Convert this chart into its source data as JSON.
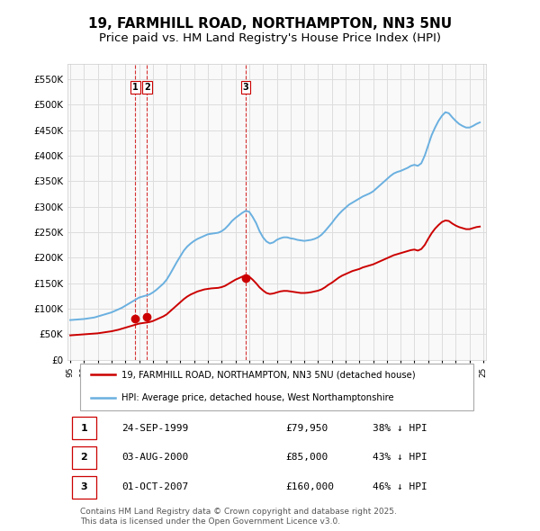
{
  "title": "19, FARMHILL ROAD, NORTHAMPTON, NN3 5NU",
  "subtitle": "Price paid vs. HM Land Registry's House Price Index (HPI)",
  "title_fontsize": 11,
  "subtitle_fontsize": 9.5,
  "background_color": "#ffffff",
  "plot_bg_color": "#f9f9f9",
  "grid_color": "#dddddd",
  "red_line_color": "#cc0000",
  "blue_line_color": "#6ab0e0",
  "sale_marker_color": "#cc0000",
  "vline_color": "#cc0000",
  "legend_label_red": "19, FARMHILL ROAD, NORTHAMPTON, NN3 5NU (detached house)",
  "legend_label_blue": "HPI: Average price, detached house, West Northamptonshire",
  "footer_text": "Contains HM Land Registry data © Crown copyright and database right 2025.\nThis data is licensed under the Open Government Licence v3.0.",
  "ylim": [
    0,
    580000
  ],
  "yticks": [
    0,
    50000,
    100000,
    150000,
    200000,
    250000,
    300000,
    350000,
    400000,
    450000,
    500000,
    550000
  ],
  "ytick_labels": [
    "£0",
    "£50K",
    "£100K",
    "£150K",
    "£200K",
    "£250K",
    "£300K",
    "£350K",
    "£400K",
    "£450K",
    "£500K",
    "£550K"
  ],
  "sales": [
    {
      "date": "24-SEP-1999",
      "price": 79950,
      "label": "1",
      "pct": "38%",
      "x_year": 1999.73
    },
    {
      "date": "03-AUG-2000",
      "price": 85000,
      "label": "2",
      "pct": "43%",
      "x_year": 2000.58
    },
    {
      "date": "01-OCT-2007",
      "price": 160000,
      "label": "3",
      "pct": "46%",
      "x_year": 2007.75
    }
  ],
  "hpi_x": [
    1995.0,
    1995.25,
    1995.5,
    1995.75,
    1996.0,
    1996.25,
    1996.5,
    1996.75,
    1997.0,
    1997.25,
    1997.5,
    1997.75,
    1998.0,
    1998.25,
    1998.5,
    1998.75,
    1999.0,
    1999.25,
    1999.5,
    1999.75,
    2000.0,
    2000.25,
    2000.5,
    2000.75,
    2001.0,
    2001.25,
    2001.5,
    2001.75,
    2002.0,
    2002.25,
    2002.5,
    2002.75,
    2003.0,
    2003.25,
    2003.5,
    2003.75,
    2004.0,
    2004.25,
    2004.5,
    2004.75,
    2005.0,
    2005.25,
    2005.5,
    2005.75,
    2006.0,
    2006.25,
    2006.5,
    2006.75,
    2007.0,
    2007.25,
    2007.5,
    2007.75,
    2008.0,
    2008.25,
    2008.5,
    2008.75,
    2009.0,
    2009.25,
    2009.5,
    2009.75,
    2010.0,
    2010.25,
    2010.5,
    2010.75,
    2011.0,
    2011.25,
    2011.5,
    2011.75,
    2012.0,
    2012.25,
    2012.5,
    2012.75,
    2013.0,
    2013.25,
    2013.5,
    2013.75,
    2014.0,
    2014.25,
    2014.5,
    2014.75,
    2015.0,
    2015.25,
    2015.5,
    2015.75,
    2016.0,
    2016.25,
    2016.5,
    2016.75,
    2017.0,
    2017.25,
    2017.5,
    2017.75,
    2018.0,
    2018.25,
    2018.5,
    2018.75,
    2019.0,
    2019.25,
    2019.5,
    2019.75,
    2020.0,
    2020.25,
    2020.5,
    2020.75,
    2021.0,
    2021.25,
    2021.5,
    2021.75,
    2022.0,
    2022.25,
    2022.5,
    2022.75,
    2023.0,
    2023.25,
    2023.5,
    2023.75,
    2024.0,
    2024.25,
    2024.5,
    2024.75
  ],
  "hpi_y": [
    78000,
    78500,
    79000,
    79500,
    80000,
    81000,
    82000,
    83000,
    85000,
    87000,
    89000,
    91000,
    93000,
    96000,
    99000,
    102000,
    106000,
    110000,
    114000,
    118000,
    122000,
    124000,
    126000,
    128000,
    132000,
    137000,
    143000,
    149000,
    157000,
    168000,
    180000,
    192000,
    203000,
    214000,
    222000,
    228000,
    233000,
    237000,
    240000,
    243000,
    246000,
    247000,
    248000,
    249000,
    252000,
    257000,
    264000,
    272000,
    278000,
    283000,
    288000,
    292000,
    290000,
    280000,
    268000,
    252000,
    240000,
    232000,
    228000,
    230000,
    235000,
    238000,
    240000,
    240000,
    238000,
    237000,
    235000,
    234000,
    233000,
    234000,
    235000,
    237000,
    240000,
    245000,
    252000,
    260000,
    268000,
    277000,
    285000,
    292000,
    298000,
    304000,
    308000,
    312000,
    316000,
    320000,
    323000,
    326000,
    330000,
    336000,
    342000,
    348000,
    354000,
    360000,
    365000,
    368000,
    370000,
    373000,
    376000,
    380000,
    382000,
    380000,
    385000,
    400000,
    420000,
    440000,
    455000,
    468000,
    478000,
    485000,
    483000,
    475000,
    468000,
    462000,
    458000,
    455000,
    455000,
    458000,
    462000,
    465000
  ],
  "red_x": [
    1995.0,
    1995.25,
    1995.5,
    1995.75,
    1996.0,
    1996.25,
    1996.5,
    1996.75,
    1997.0,
    1997.25,
    1997.5,
    1997.75,
    1998.0,
    1998.25,
    1998.5,
    1998.75,
    1999.0,
    1999.25,
    1999.5,
    1999.75,
    2000.0,
    2000.25,
    2000.5,
    2000.75,
    2001.0,
    2001.25,
    2001.5,
    2001.75,
    2002.0,
    2002.25,
    2002.5,
    2002.75,
    2003.0,
    2003.25,
    2003.5,
    2003.75,
    2004.0,
    2004.25,
    2004.5,
    2004.75,
    2005.0,
    2005.25,
    2005.5,
    2005.75,
    2006.0,
    2006.25,
    2006.5,
    2006.75,
    2007.0,
    2007.25,
    2007.5,
    2007.75,
    2008.0,
    2008.25,
    2008.5,
    2008.75,
    2009.0,
    2009.25,
    2009.5,
    2009.75,
    2010.0,
    2010.25,
    2010.5,
    2010.75,
    2011.0,
    2011.25,
    2011.5,
    2011.75,
    2012.0,
    2012.25,
    2012.5,
    2012.75,
    2013.0,
    2013.25,
    2013.5,
    2013.75,
    2014.0,
    2014.25,
    2014.5,
    2014.75,
    2015.0,
    2015.25,
    2015.5,
    2015.75,
    2016.0,
    2016.25,
    2016.5,
    2016.75,
    2017.0,
    2017.25,
    2017.5,
    2017.75,
    2018.0,
    2018.25,
    2018.5,
    2018.75,
    2019.0,
    2019.25,
    2019.5,
    2019.75,
    2020.0,
    2020.25,
    2020.5,
    2020.75,
    2021.0,
    2021.25,
    2021.5,
    2021.75,
    2022.0,
    2022.25,
    2022.5,
    2022.75,
    2023.0,
    2023.25,
    2023.5,
    2023.75,
    2024.0,
    2024.25,
    2024.5,
    2024.75
  ],
  "red_y": [
    48000,
    48500,
    49000,
    49500,
    50000,
    50500,
    51000,
    51500,
    52000,
    53000,
    54000,
    55000,
    56000,
    57500,
    59000,
    61000,
    63000,
    65000,
    67000,
    69000,
    71000,
    72000,
    73000,
    74000,
    76000,
    79000,
    82000,
    85000,
    89000,
    95000,
    101000,
    107000,
    113000,
    119000,
    124000,
    128000,
    131000,
    134000,
    136000,
    138000,
    139000,
    140000,
    140500,
    141000,
    142500,
    145000,
    149000,
    153000,
    157000,
    160000,
    163000,
    165000,
    163000,
    157000,
    150000,
    142000,
    136000,
    131000,
    129000,
    130000,
    132000,
    134000,
    135000,
    135000,
    134000,
    133000,
    132000,
    131000,
    131000,
    131500,
    132500,
    134000,
    135500,
    138000,
    142000,
    147000,
    151000,
    156000,
    161000,
    165000,
    168000,
    171000,
    174000,
    176000,
    178000,
    181000,
    183000,
    185000,
    187000,
    190000,
    193000,
    196000,
    199000,
    202000,
    205000,
    207000,
    209000,
    211000,
    213000,
    215000,
    216000,
    214000,
    217000,
    225000,
    237000,
    248000,
    257000,
    264000,
    270000,
    273000,
    272000,
    267000,
    263000,
    260000,
    258000,
    256000,
    256000,
    258000,
    260000,
    261000
  ],
  "xtick_years": [
    1995,
    1996,
    1997,
    1998,
    1999,
    2000,
    2001,
    2002,
    2003,
    2004,
    2005,
    2006,
    2007,
    2008,
    2009,
    2010,
    2011,
    2012,
    2013,
    2014,
    2015,
    2016,
    2017,
    2018,
    2019,
    2020,
    2021,
    2022,
    2023,
    2024,
    2025
  ]
}
